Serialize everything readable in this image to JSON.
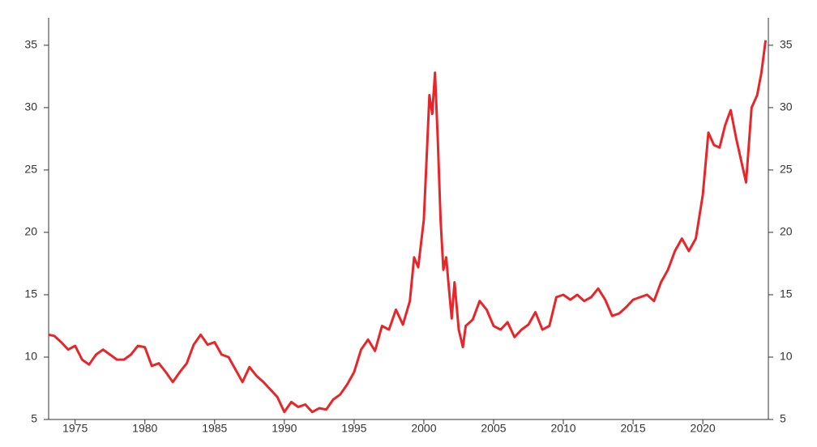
{
  "chart_data": {
    "type": "line",
    "x": [
      1973.1,
      1973.5,
      1974,
      1974.5,
      1975,
      1975.5,
      1976,
      1976.5,
      1977,
      1977.5,
      1978,
      1978.5,
      1979,
      1979.5,
      1980,
      1980.5,
      1981,
      1981.5,
      1982,
      1982.5,
      1983,
      1983.5,
      1984,
      1984.5,
      1985,
      1985.5,
      1986,
      1986.5,
      1987,
      1987.5,
      1988,
      1988.5,
      1989,
      1989.5,
      1990,
      1990.5,
      1991,
      1991.5,
      1992,
      1992.5,
      1993,
      1993.5,
      1994,
      1994.5,
      1995,
      1995.5,
      1996,
      1996.5,
      1997,
      1997.5,
      1998,
      1998.5,
      1999,
      1999.3,
      1999.6,
      2000,
      2000.2,
      2000.4,
      2000.6,
      2000.8,
      2001,
      2001.2,
      2001.4,
      2001.6,
      2001.8,
      2002,
      2002.2,
      2002.5,
      2002.8,
      2003,
      2003.5,
      2004,
      2004.5,
      2005,
      2005.5,
      2006,
      2006.5,
      2007,
      2007.5,
      2008,
      2008.5,
      2009,
      2009.5,
      2010,
      2010.5,
      2011,
      2011.5,
      2012,
      2012.5,
      2013,
      2013.5,
      2014,
      2014.5,
      2015,
      2015.5,
      2016,
      2016.5,
      2017,
      2017.5,
      2018,
      2018.5,
      2019,
      2019.5,
      2020,
      2020.4,
      2020.8,
      2021.2,
      2021.6,
      2022,
      2022.4,
      2022.8,
      2023.1,
      2023.5,
      2023.9,
      2024.2,
      2024.5
    ],
    "series": [
      {
        "color": "#e8262a",
        "values": [
          11.8,
          11.7,
          11.2,
          10.6,
          10.9,
          9.8,
          9.4,
          10.2,
          10.6,
          10.2,
          9.8,
          9.8,
          10.2,
          10.9,
          10.8,
          9.3,
          9.5,
          8.8,
          8.0,
          8.8,
          9.5,
          11.0,
          11.8,
          11.0,
          11.2,
          10.2,
          10.0,
          9.0,
          8.0,
          9.2,
          8.5,
          8.0,
          7.4,
          6.8,
          5.6,
          6.4,
          6.0,
          6.2,
          5.6,
          5.9,
          5.8,
          6.6,
          7.0,
          7.8,
          8.8,
          10.6,
          11.4,
          10.5,
          12.5,
          12.2,
          13.8,
          12.6,
          14.5,
          18.0,
          17.2,
          21.0,
          26.0,
          31.0,
          29.5,
          32.8,
          27.5,
          21.0,
          17.0,
          18.0,
          15.5,
          13.1,
          16.0,
          12.2,
          10.8,
          12.5,
          13.0,
          14.5,
          13.8,
          12.5,
          12.2,
          12.8,
          11.6,
          12.2,
          12.6,
          13.6,
          12.2,
          12.5,
          14.8,
          15.0,
          14.6,
          15.0,
          14.5,
          14.8,
          15.5,
          14.6,
          13.3,
          13.5,
          14.0,
          14.6,
          14.8,
          15.0,
          14.5,
          16.0,
          17.0,
          18.5,
          19.5,
          18.5,
          19.5,
          23.0,
          28.0,
          27.0,
          26.8,
          28.6,
          29.8,
          27.5,
          25.5,
          24.0,
          30.0,
          31.0,
          32.8,
          35.4
        ]
      }
    ],
    "xlim": [
      1973.1,
      2024.7
    ],
    "xticks": [
      1975,
      1980,
      1985,
      1990,
      1995,
      2000,
      2005,
      2010,
      2015,
      2020
    ],
    "ylim": [
      5,
      37.2
    ],
    "yticks": [
      5,
      10,
      15,
      20,
      25,
      30,
      35
    ],
    "y2lim": [
      5,
      37.2
    ],
    "y2ticks": [
      5,
      10,
      15,
      20,
      25,
      30,
      35
    ]
  }
}
